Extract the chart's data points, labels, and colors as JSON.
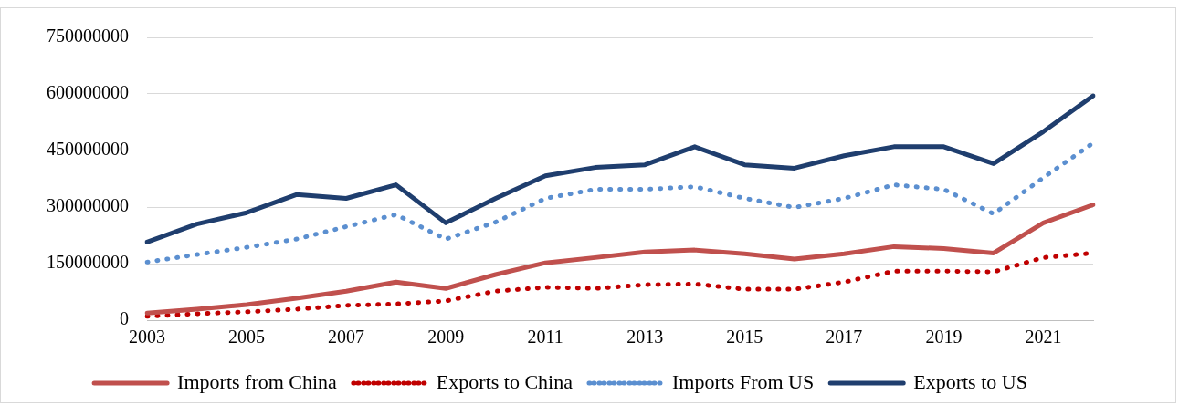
{
  "chart_data": {
    "type": "line",
    "categories": [
      "2003",
      null,
      "2005",
      null,
      "2007",
      null,
      "2009",
      null,
      "2011",
      null,
      "2013",
      null,
      "2015",
      null,
      "2017",
      null,
      "2019",
      null,
      "2021",
      null
    ],
    "series": [
      {
        "name": "Imports from China",
        "color": "#c0504d",
        "line_style": "solid",
        "values": [
          19000000,
          29000000,
          41000000,
          58000000,
          77000000,
          101000000,
          84000000,
          121000000,
          152000000,
          166000000,
          181000000,
          186000000,
          176000000,
          162000000,
          176000000,
          195000000,
          190000000,
          178000000,
          258000000,
          306000000
        ]
      },
      {
        "name": "Exports to China",
        "color": "#c00000",
        "line_style": "dotted",
        "values": [
          10000000,
          17000000,
          22000000,
          29000000,
          39000000,
          43000000,
          51000000,
          77000000,
          87000000,
          84000000,
          94000000,
          96000000,
          82000000,
          82000000,
          101000000,
          130000000,
          130000000,
          128000000,
          166000000,
          178000000
        ]
      },
      {
        "name": "Imports From US",
        "color": "#5b8fd0",
        "line_style": "dotted",
        "values": [
          154000000,
          174000000,
          193000000,
          215000000,
          248000000,
          280000000,
          215000000,
          260000000,
          323000000,
          347000000,
          347000000,
          354000000,
          323000000,
          299000000,
          323000000,
          359000000,
          347000000,
          282000000,
          378000000,
          470000000
        ]
      },
      {
        "name": "Exports to US",
        "color": "#1f3e6e",
        "line_style": "solid",
        "values": [
          207000000,
          255000000,
          285000000,
          333000000,
          323000000,
          359000000,
          258000000,
          323000000,
          383000000,
          405000000,
          412000000,
          460000000,
          412000000,
          403000000,
          436000000,
          460000000,
          460000000,
          415000000,
          500000000,
          595000000
        ]
      }
    ],
    "ylim": [
      0,
      750000000
    ],
    "yticks": [
      0,
      150000000,
      300000000,
      450000000,
      600000000,
      750000000
    ],
    "grid": "y",
    "legend": "bottom",
    "marker": "none"
  }
}
